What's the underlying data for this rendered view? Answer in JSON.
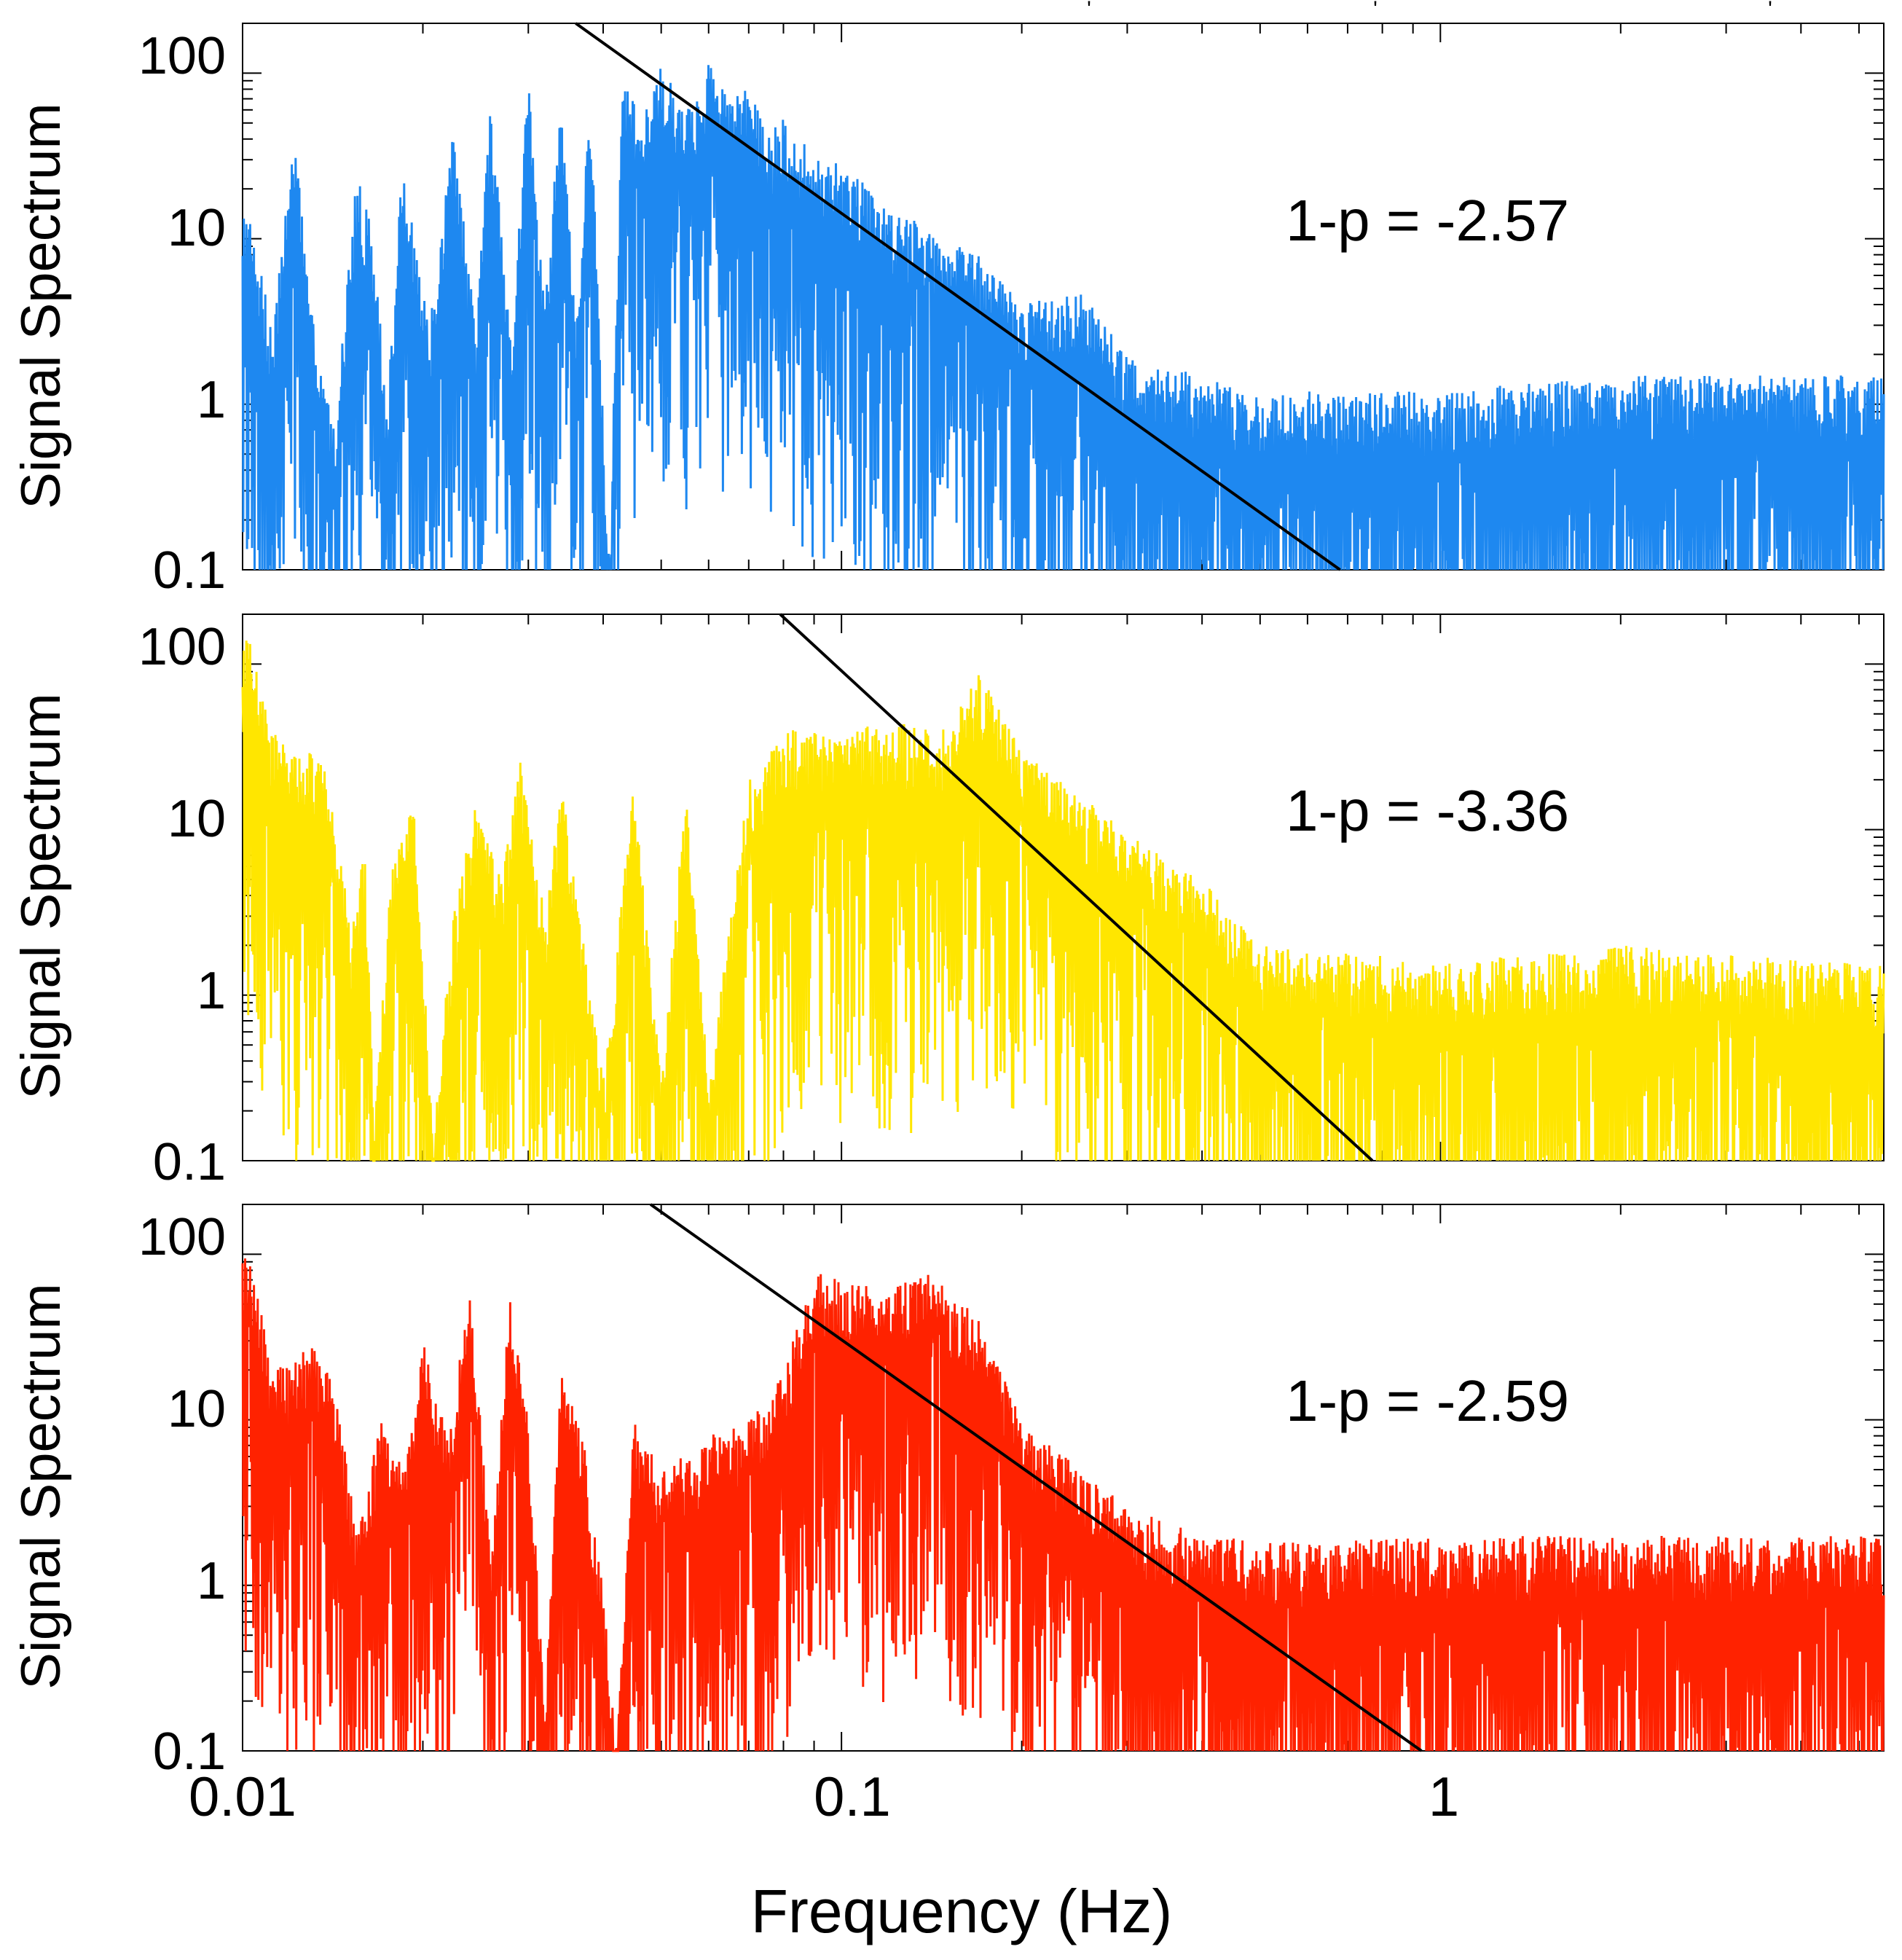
{
  "chart_data": [
    {
      "type": "line",
      "scale": "log-log",
      "ylabel": "Signal Spectrum",
      "xlim": [
        0.01,
        5.5
      ],
      "ylim": [
        0.1,
        200
      ],
      "yticks": [
        0.1,
        1,
        10,
        100
      ],
      "ytick_labels": [
        "0.1",
        "1",
        "10",
        "100"
      ],
      "series": [
        {
          "name": "signal spectrum (blue)",
          "color": "#1e88f0",
          "envelope": [
            [
              0.0102,
              15
            ],
            [
              0.0112,
              3
            ],
            [
              0.0122,
              40
            ],
            [
              0.0133,
              2
            ],
            [
              0.0143,
              0.8
            ],
            [
              0.0155,
              25
            ],
            [
              0.0166,
              10
            ],
            [
              0.0174,
              0.9
            ],
            [
              0.0185,
              30
            ],
            [
              0.0205,
              3
            ],
            [
              0.0225,
              45
            ],
            [
              0.0245,
              3
            ],
            [
              0.026,
              70
            ],
            [
              0.028,
              2.5
            ],
            [
              0.03,
              90
            ],
            [
              0.032,
              4
            ],
            [
              0.034,
              90
            ],
            [
              0.036,
              3
            ],
            [
              0.038,
              80
            ],
            [
              0.041,
              0.1
            ],
            [
              0.043,
              120
            ],
            [
              0.046,
              50
            ],
            [
              0.05,
              110
            ],
            [
              0.055,
              60
            ],
            [
              0.06,
              120
            ],
            [
              0.065,
              80
            ],
            [
              0.07,
              100
            ],
            [
              0.075,
              40
            ],
            [
              0.08,
              60
            ],
            [
              0.09,
              30
            ],
            [
              0.1,
              30
            ],
            [
              0.12,
              15
            ],
            [
              0.14,
              12
            ],
            [
              0.17,
              8
            ],
            [
              0.2,
              4
            ],
            [
              0.25,
              5
            ],
            [
              0.3,
              2
            ],
            [
              0.4,
              1.5
            ],
            [
              0.5,
              1.2
            ],
            [
              0.7,
              1.2
            ],
            [
              1.0,
              1.2
            ],
            [
              2.0,
              1.5
            ],
            [
              5.5,
              1.5
            ]
          ]
        }
      ],
      "fit_line": {
        "color": "#000000",
        "from": [
          0.036,
          210
        ],
        "to": [
          0.68,
          0.1
        ]
      },
      "annotation": "1-p = -2.57",
      "stray_marks": [
        "'",
        "'",
        "'"
      ]
    },
    {
      "type": "line",
      "scale": "log-log",
      "ylabel": "Signal Spectrum",
      "xlim": [
        0.01,
        5.5
      ],
      "ylim": [
        0.1,
        200
      ],
      "yticks": [
        0.1,
        1,
        10,
        100
      ],
      "ytick_labels": [
        "0.1",
        "1",
        "10",
        "100"
      ],
      "series": [
        {
          "name": "signal spectrum (yellow)",
          "color": "#ffe600",
          "envelope": [
            [
              0.0101,
              180
            ],
            [
              0.0112,
              40
            ],
            [
              0.0123,
              28
            ],
            [
              0.0135,
              30
            ],
            [
              0.0145,
              8
            ],
            [
              0.0152,
              2.5
            ],
            [
              0.016,
              8
            ],
            [
              0.0166,
              0.15
            ],
            [
              0.0176,
              5
            ],
            [
              0.0193,
              15
            ],
            [
              0.0208,
              0.15
            ],
            [
              0.0225,
              3
            ],
            [
              0.0245,
              15
            ],
            [
              0.027,
              5
            ],
            [
              0.029,
              30
            ],
            [
              0.032,
              3
            ],
            [
              0.034,
              20
            ],
            [
              0.036,
              5
            ],
            [
              0.04,
              0.3
            ],
            [
              0.045,
              20
            ],
            [
              0.05,
              0.3
            ],
            [
              0.055,
              18
            ],
            [
              0.06,
              0.3
            ],
            [
              0.07,
              20
            ],
            [
              0.08,
              40
            ],
            [
              0.1,
              40
            ],
            [
              0.12,
              45
            ],
            [
              0.15,
              40
            ],
            [
              0.17,
              90
            ],
            [
              0.2,
              30
            ],
            [
              0.23,
              20
            ],
            [
              0.3,
              10
            ],
            [
              0.4,
              5
            ],
            [
              0.5,
              2
            ],
            [
              0.7,
              1.8
            ],
            [
              1.0,
              1.6
            ],
            [
              2.0,
              2.0
            ],
            [
              5.5,
              1.5
            ]
          ]
        }
      ],
      "fit_line": {
        "color": "#000000",
        "from": [
          0.079,
          210
        ],
        "to": [
          0.77,
          0.1
        ]
      },
      "annotation": "1-p = -3.36"
    },
    {
      "type": "line",
      "scale": "log-log",
      "title": "",
      "xlabel": "Frequency (Hz)",
      "ylabel": "Signal Spectrum",
      "xlim": [
        0.01,
        5.5
      ],
      "ylim": [
        0.1,
        200
      ],
      "xticks": [
        0.01,
        0.1,
        1
      ],
      "xtick_labels": [
        "0.01",
        "0.1",
        "1"
      ],
      "yticks": [
        0.1,
        1,
        10,
        100
      ],
      "ytick_labels": [
        "0.1",
        "1",
        "10",
        "100"
      ],
      "series": [
        {
          "name": "signal spectrum (red)",
          "color": "#ff2200",
          "envelope": [
            [
              0.0102,
              100
            ],
            [
              0.011,
              30
            ],
            [
              0.012,
              20
            ],
            [
              0.013,
              30
            ],
            [
              0.0145,
              15
            ],
            [
              0.0155,
              2
            ],
            [
              0.017,
              10
            ],
            [
              0.0185,
              5
            ],
            [
              0.02,
              30
            ],
            [
              0.022,
              8
            ],
            [
              0.024,
              60
            ],
            [
              0.026,
              1.5
            ],
            [
              0.028,
              60
            ],
            [
              0.03,
              10
            ],
            [
              0.032,
              0.2
            ],
            [
              0.034,
              20
            ],
            [
              0.037,
              8
            ],
            [
              0.04,
              1
            ],
            [
              0.042,
              0.1
            ],
            [
              0.045,
              10
            ],
            [
              0.05,
              5
            ],
            [
              0.06,
              8
            ],
            [
              0.07,
              10
            ],
            [
              0.08,
              20
            ],
            [
              0.09,
              80
            ],
            [
              0.1,
              70
            ],
            [
              0.12,
              60
            ],
            [
              0.14,
              80
            ],
            [
              0.17,
              40
            ],
            [
              0.2,
              10
            ],
            [
              0.25,
              5
            ],
            [
              0.3,
              3
            ],
            [
              0.4,
              2
            ],
            [
              0.6,
              1.8
            ],
            [
              1.0,
              2
            ],
            [
              2.0,
              2
            ],
            [
              5.5,
              2
            ]
          ]
        }
      ],
      "fit_line": {
        "color": "#000000",
        "from": [
          0.048,
          210
        ],
        "to": [
          0.93,
          0.1
        ]
      },
      "annotation": "1-p = -2.59"
    }
  ]
}
